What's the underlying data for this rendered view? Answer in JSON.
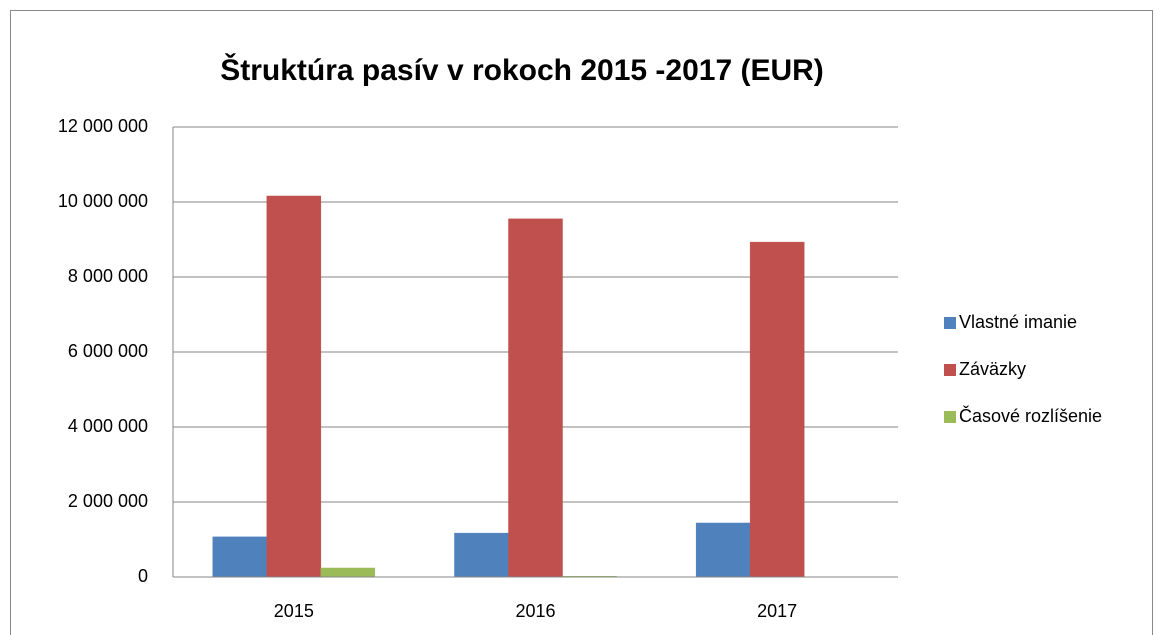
{
  "chart_data": {
    "type": "bar",
    "title": "Štruktúra pasív v rokoch 2015 -2017 (EUR)",
    "categories": [
      "2015",
      "2016",
      "2017"
    ],
    "series": [
      {
        "name": "Vlastné imanie",
        "color": "#4f81bd",
        "values": [
          1070000,
          1170000,
          1440000
        ]
      },
      {
        "name": "Záväzky",
        "color": "#c0504d",
        "values": [
          10160000,
          9550000,
          8930000
        ]
      },
      {
        "name": "Časové rozlíšenie",
        "color": "#9bbb59",
        "values": [
          240000,
          20000,
          0
        ]
      }
    ],
    "ylim": [
      0,
      12000000
    ],
    "yticks": [
      {
        "value": 0,
        "label": "0"
      },
      {
        "value": 2000000,
        "label": "2 000 000"
      },
      {
        "value": 4000000,
        "label": "4 000 000"
      },
      {
        "value": 6000000,
        "label": "6 000 000"
      },
      {
        "value": 8000000,
        "label": "8 000 000"
      },
      {
        "value": 10000000,
        "label": "10 000 000"
      },
      {
        "value": 12000000,
        "label": "12 000 000"
      }
    ],
    "grid": true,
    "legend": "right"
  }
}
